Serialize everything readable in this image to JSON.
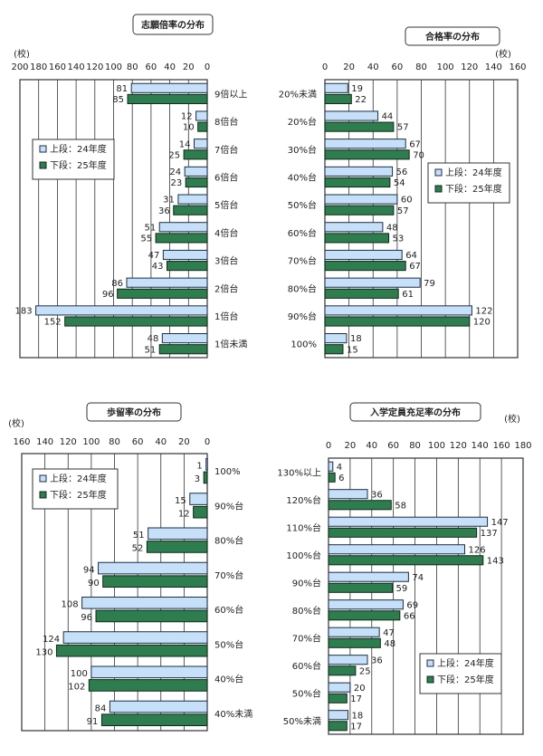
{
  "chart_data": [
    {
      "type": "bar",
      "orientation": "horizontal",
      "axis_direction": "reversed",
      "title": "志願倍率の分布",
      "unit": "(校)",
      "xlim": [
        0,
        200
      ],
      "ticks": [
        200,
        180,
        160,
        140,
        120,
        100,
        80,
        60,
        40,
        20,
        0
      ],
      "legend_position": "left-middle",
      "categories": [
        "9倍以上",
        "8倍台",
        "7倍台",
        "6倍台",
        "5倍台",
        "4倍台",
        "3倍台",
        "2倍台",
        "1倍台",
        "1倍未満"
      ],
      "series": [
        {
          "name": "上段：24年度",
          "color": "#c6e0fa",
          "values": [
            81,
            12,
            14,
            24,
            31,
            51,
            47,
            86,
            183,
            48
          ]
        },
        {
          "name": "下段：25年度",
          "color": "#2e7d4f",
          "values": [
            85,
            10,
            25,
            23,
            36,
            55,
            43,
            96,
            152,
            51
          ]
        }
      ]
    },
    {
      "type": "bar",
      "orientation": "horizontal",
      "axis_direction": "normal",
      "title": "合格率の分布",
      "unit": "(校)",
      "xlim": [
        0,
        160
      ],
      "ticks": [
        0,
        20,
        40,
        60,
        80,
        100,
        120,
        140,
        160
      ],
      "legend_position": "right-upper",
      "categories": [
        "20%未満",
        "20%台",
        "30%台",
        "40%台",
        "50%台",
        "60%台",
        "70%台",
        "80%台",
        "90%台",
        "100%"
      ],
      "series": [
        {
          "name": "上段：24年度",
          "color": "#c6e0fa",
          "values": [
            19,
            44,
            67,
            56,
            60,
            48,
            64,
            79,
            122,
            18
          ]
        },
        {
          "name": "下段：25年度",
          "color": "#2e7d4f",
          "values": [
            22,
            57,
            70,
            54,
            57,
            53,
            67,
            61,
            120,
            15
          ]
        }
      ]
    },
    {
      "type": "bar",
      "orientation": "horizontal",
      "axis_direction": "reversed",
      "title": "歩留率の分布",
      "unit": "(校)",
      "xlim": [
        0,
        160
      ],
      "ticks": [
        160,
        140,
        120,
        100,
        80,
        60,
        40,
        20,
        0
      ],
      "legend_position": "left-upper",
      "categories": [
        "100%",
        "90%台",
        "80%台",
        "70%台",
        "60%台",
        "50%台",
        "40%台",
        "40%未満"
      ],
      "series": [
        {
          "name": "上段：24年度",
          "color": "#c6e0fa",
          "values": [
            1,
            15,
            51,
            94,
            108,
            124,
            100,
            84
          ]
        },
        {
          "name": "下段：25年度",
          "color": "#2e7d4f",
          "values": [
            3,
            12,
            52,
            90,
            96,
            130,
            102,
            91
          ]
        }
      ]
    },
    {
      "type": "bar",
      "orientation": "horizontal",
      "axis_direction": "normal",
      "title": "入学定員充足率の分布",
      "unit": "(校)",
      "xlim": [
        0,
        180
      ],
      "ticks": [
        0,
        20,
        40,
        60,
        80,
        100,
        120,
        140,
        160,
        180
      ],
      "legend_position": "right-lower",
      "categories": [
        "130%以上",
        "120%台",
        "110%台",
        "100%台",
        "90%台",
        "80%台",
        "70%台",
        "60%台",
        "50%台",
        "50%未満"
      ],
      "series": [
        {
          "name": "上段：24年度",
          "color": "#c6e0fa",
          "values": [
            4,
            36,
            147,
            126,
            74,
            69,
            47,
            36,
            20,
            18
          ]
        },
        {
          "name": "下段：25年度",
          "color": "#2e7d4f",
          "values": [
            6,
            58,
            137,
            143,
            59,
            66,
            48,
            25,
            17,
            17
          ]
        }
      ]
    }
  ]
}
